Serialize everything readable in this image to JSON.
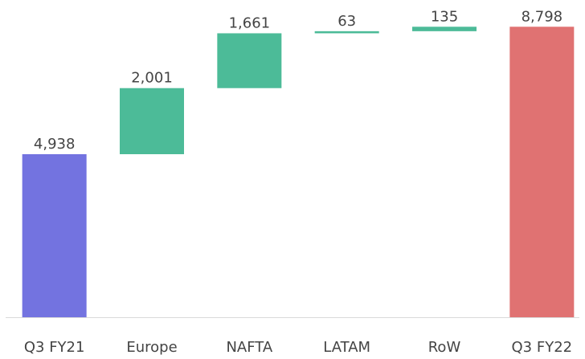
{
  "chart_data": {
    "type": "waterfall",
    "categories": [
      "Q3 FY21",
      "Europe",
      "NAFTA",
      "LATAM",
      "RoW",
      "Q3 FY22"
    ],
    "values": [
      4938,
      2001,
      1661,
      63,
      135,
      8798
    ],
    "value_labels": [
      "4,938",
      "2,001",
      "1,661",
      "63",
      "135",
      "8,798"
    ],
    "measures": [
      "absolute",
      "relative",
      "relative",
      "relative",
      "relative",
      "total"
    ],
    "colors": {
      "absolute": "#7373e0",
      "relative": "#4cbb98",
      "total": "#e07272"
    },
    "ylim": [
      0,
      9000
    ]
  }
}
